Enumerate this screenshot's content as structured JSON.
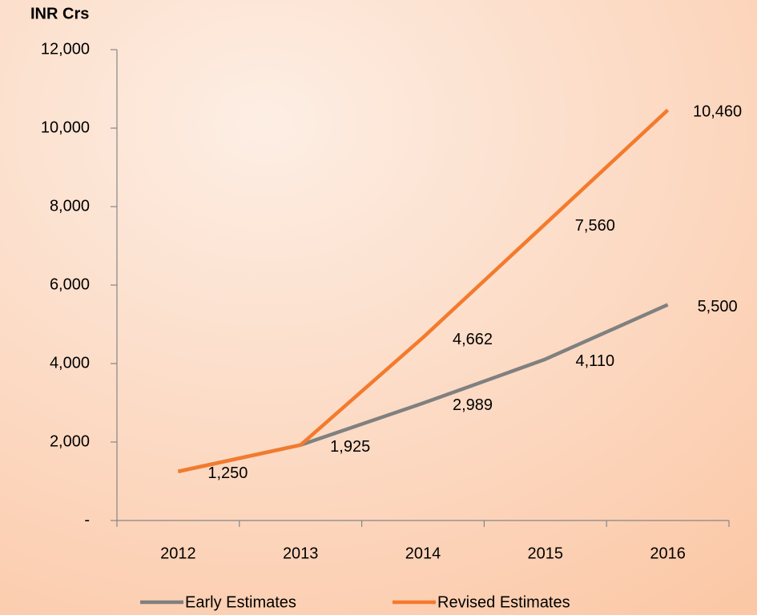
{
  "chart_data": {
    "type": "line",
    "y_label": "INR Crs",
    "categories": [
      "2012",
      "2013",
      "2014",
      "2015",
      "2016"
    ],
    "series": [
      {
        "name": "Early Estimates",
        "color": "#808080",
        "values": [
          1250,
          1925,
          2989,
          4110,
          5500
        ],
        "value_labels": [
          "1,250",
          "1,925",
          "2,989",
          "4,110",
          "5,500"
        ]
      },
      {
        "name": "Revised Estimates",
        "color": "#f47a2c",
        "values": [
          1250,
          1925,
          4662,
          7560,
          10460
        ],
        "value_labels": [
          null,
          null,
          "4,662",
          "7,560",
          "10,460"
        ]
      }
    ],
    "ylim": [
      0,
      12000
    ],
    "yticks": [
      {
        "value": 0,
        "label": "-"
      },
      {
        "value": 2000,
        "label": "2,000"
      },
      {
        "value": 4000,
        "label": "4,000"
      },
      {
        "value": 6000,
        "label": "6,000"
      },
      {
        "value": 8000,
        "label": "8,000"
      },
      {
        "value": 10000,
        "label": "10,000"
      },
      {
        "value": 12000,
        "label": "12,000"
      }
    ],
    "legend": "bottom"
  }
}
